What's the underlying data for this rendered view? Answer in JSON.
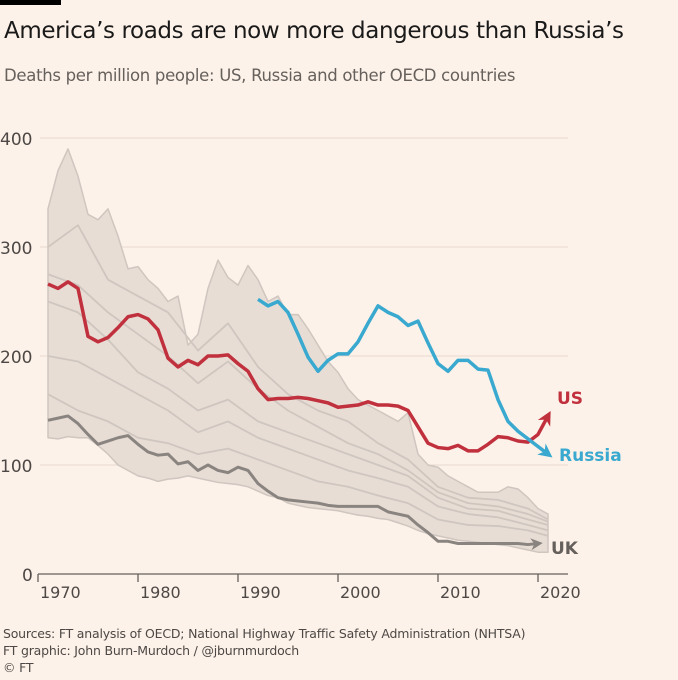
{
  "title": "America’s roads are now more dangerous than Russia’s",
  "subtitle": "Deaths per million people: US, Russia and other OECD countries",
  "footer": {
    "sources": "Sources: FT analysis of OECD; National Highway Traffic Safety Administration (NHTSA)",
    "graphic": "FT graphic: John Burn-Murdoch / @jburnmurdoch",
    "copyright": "© FT"
  },
  "chart_data": {
    "type": "line",
    "title": "America’s roads are now more dangerous than Russia’s",
    "ylabel": "Deaths per million people",
    "ylim": [
      0,
      400
    ],
    "xlim": [
      1970,
      2020
    ],
    "yticks": [
      "0",
      "100",
      "200",
      "300",
      "400"
    ],
    "xticks": [
      "1970",
      "1980",
      "1990",
      "2000",
      "2010",
      "2020"
    ],
    "grid": true,
    "colors": {
      "US": "#c0303d",
      "Russia": "#3aa9d0",
      "UK": "#8a8480",
      "OECD": "#cfc6c0",
      "band": "#e8ddd5"
    },
    "series": [
      {
        "name": "US",
        "x": [
          1971,
          1972,
          1973,
          1974,
          1975,
          1976,
          1977,
          1978,
          1979,
          1980,
          1981,
          1982,
          1983,
          1984,
          1985,
          1986,
          1987,
          1988,
          1989,
          1990,
          1991,
          1992,
          1993,
          1994,
          1995,
          1996,
          1997,
          1998,
          1999,
          2000,
          2001,
          2002,
          2003,
          2004,
          2005,
          2006,
          2007,
          2008,
          2009,
          2010,
          2011,
          2012,
          2013,
          2014,
          2015,
          2016,
          2017,
          2018,
          2019,
          2020,
          2021
        ],
        "values": [
          266,
          262,
          268,
          262,
          218,
          213,
          217,
          226,
          236,
          238,
          234,
          224,
          198,
          190,
          196,
          192,
          200,
          200,
          201,
          193,
          186,
          170,
          160,
          161,
          161,
          162,
          161,
          159,
          157,
          153,
          154,
          155,
          158,
          155,
          155,
          154,
          150,
          135,
          120,
          116,
          115,
          118,
          113,
          113,
          119,
          126,
          125,
          122,
          121,
          128,
          145
        ]
      },
      {
        "name": "Russia",
        "x": [
          1992,
          1993,
          1994,
          1995,
          1996,
          1997,
          1998,
          1999,
          2000,
          2001,
          2002,
          2003,
          2004,
          2005,
          2006,
          2007,
          2008,
          2009,
          2010,
          2011,
          2012,
          2013,
          2014,
          2015,
          2016,
          2017,
          2018,
          2019,
          2021
        ],
        "values": [
          252,
          246,
          250,
          240,
          220,
          199,
          186,
          196,
          202,
          202,
          213,
          230,
          246,
          240,
          236,
          228,
          232,
          212,
          193,
          186,
          196,
          196,
          188,
          187,
          160,
          140,
          131,
          124,
          110
        ]
      },
      {
        "name": "UK",
        "x": [
          1971,
          1972,
          1973,
          1974,
          1975,
          1976,
          1977,
          1978,
          1979,
          1980,
          1981,
          1982,
          1983,
          1984,
          1985,
          1986,
          1987,
          1988,
          1989,
          1990,
          1991,
          1992,
          1993,
          1994,
          1995,
          1996,
          1997,
          1998,
          1999,
          2000,
          2001,
          2002,
          2003,
          2004,
          2005,
          2006,
          2007,
          2008,
          2009,
          2010,
          2011,
          2012,
          2013,
          2014,
          2015,
          2016,
          2017,
          2018,
          2019,
          2020
        ],
        "values": [
          141,
          143,
          145,
          138,
          128,
          119,
          122,
          125,
          127,
          119,
          112,
          109,
          110,
          101,
          103,
          95,
          100,
          95,
          93,
          98,
          95,
          83,
          76,
          70,
          68,
          67,
          66,
          65,
          63,
          62,
          62,
          62,
          62,
          62,
          57,
          55,
          53,
          45,
          38,
          30,
          30,
          28,
          28,
          28,
          28,
          28,
          28,
          28,
          27,
          28
        ]
      }
    ],
    "oecd_range": {
      "x": [
        1971,
        1972,
        1973,
        1974,
        1975,
        1976,
        1977,
        1978,
        1979,
        1980,
        1981,
        1982,
        1983,
        1984,
        1985,
        1986,
        1987,
        1988,
        1989,
        1990,
        1991,
        1992,
        1993,
        1994,
        1995,
        1996,
        1997,
        1998,
        1999,
        2000,
        2001,
        2002,
        2003,
        2004,
        2005,
        2006,
        2007,
        2008,
        2009,
        2010,
        2011,
        2012,
        2013,
        2014,
        2015,
        2016,
        2017,
        2018,
        2019,
        2020,
        2021
      ],
      "upper": [
        335,
        370,
        390,
        365,
        330,
        325,
        335,
        310,
        280,
        282,
        270,
        262,
        250,
        255,
        210,
        220,
        262,
        288,
        272,
        265,
        283,
        270,
        250,
        255,
        238,
        238,
        225,
        210,
        195,
        185,
        170,
        160,
        155,
        150,
        145,
        140,
        148,
        110,
        100,
        98,
        90,
        85,
        80,
        75,
        75,
        75,
        80,
        78,
        70,
        60,
        55
      ],
      "lower": [
        125,
        124,
        126,
        125,
        125,
        118,
        110,
        100,
        95,
        90,
        88,
        85,
        87,
        88,
        90,
        88,
        86,
        84,
        83,
        82,
        80,
        76,
        72,
        70,
        65,
        63,
        61,
        60,
        59,
        58,
        56,
        54,
        53,
        51,
        50,
        47,
        44,
        40,
        37,
        35,
        33,
        31,
        30,
        29,
        28,
        27,
        26,
        24,
        22,
        20,
        20
      ]
    },
    "oecd_lines": [
      {
        "x": [
          1971,
          1974,
          1977,
          1980,
          1983,
          1986,
          1989,
          1992,
          1995,
          1998,
          2001,
          2004,
          2007,
          2010,
          2013,
          2016,
          2019,
          2021
        ],
        "values": [
          300,
          320,
          270,
          255,
          240,
          205,
          230,
          190,
          165,
          150,
          140,
          120,
          105,
          80,
          70,
          68,
          60,
          50
        ]
      },
      {
        "x": [
          1971,
          1974,
          1977,
          1980,
          1983,
          1986,
          1989,
          1992,
          1995,
          1998,
          2001,
          2004,
          2007,
          2010,
          2013,
          2016,
          2019,
          2021
        ],
        "values": [
          250,
          240,
          215,
          185,
          170,
          150,
          160,
          140,
          130,
          120,
          110,
          100,
          90,
          70,
          60,
          58,
          50,
          45
        ]
      },
      {
        "x": [
          1971,
          1974,
          1977,
          1980,
          1983,
          1986,
          1989,
          1992,
          1995,
          1998,
          2001,
          2004,
          2007,
          2010,
          2013,
          2016,
          2019,
          2021
        ],
        "values": [
          200,
          195,
          180,
          165,
          150,
          130,
          140,
          125,
          115,
          105,
          95,
          88,
          80,
          62,
          55,
          52,
          45,
          40
        ]
      },
      {
        "x": [
          1971,
          1974,
          1977,
          1980,
          1983,
          1986,
          1989,
          1992,
          1995,
          1998,
          2001,
          2004,
          2007,
          2010,
          2013,
          2016,
          2019,
          2021
        ],
        "values": [
          165,
          150,
          140,
          125,
          120,
          110,
          115,
          105,
          95,
          85,
          80,
          72,
          65,
          50,
          45,
          44,
          40,
          35
        ]
      },
      {
        "x": [
          1971,
          1974,
          1977,
          1980,
          1983,
          1986,
          1989,
          1992,
          1995,
          1998,
          2001,
          2004,
          2007,
          2010,
          2013,
          2016,
          2019,
          2021
        ],
        "values": [
          275,
          265,
          240,
          220,
          200,
          175,
          195,
          170,
          150,
          135,
          120,
          110,
          95,
          75,
          65,
          62,
          55,
          48
        ]
      }
    ],
    "labels": [
      "US",
      "Russia",
      "UK"
    ]
  }
}
